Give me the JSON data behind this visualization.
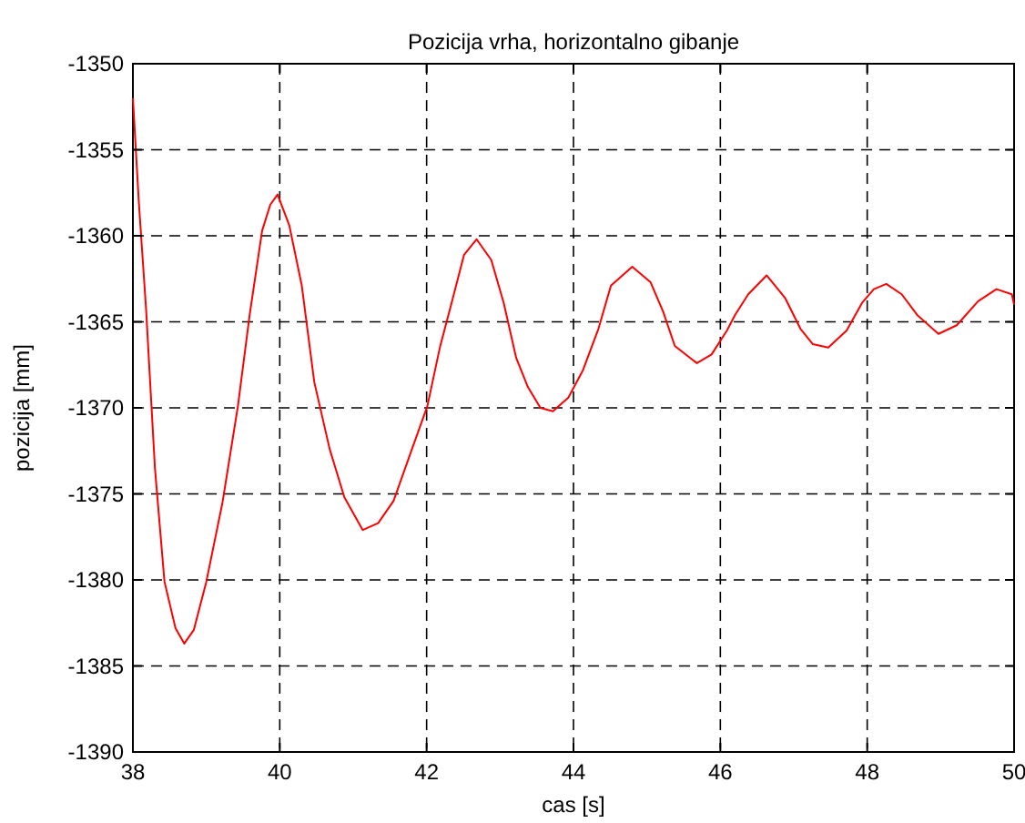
{
  "chart_data": {
    "type": "line",
    "title": "Pozicija vrha, horizontalno gibanje",
    "xlabel": "cas [s]",
    "ylabel": "pozicija [mm]",
    "xlim": [
      38,
      50
    ],
    "xticks": [
      38,
      40,
      42,
      44,
      46,
      48,
      50
    ],
    "ylim": [
      -1390,
      -1350
    ],
    "yticks": [
      -1390,
      -1385,
      -1380,
      -1375,
      -1370,
      -1365,
      -1360,
      -1355,
      -1350
    ],
    "grid": true,
    "line_style": "solid",
    "marker": "none",
    "series": [
      {
        "color": "#ff0000",
        "x": [
          38.0,
          38.08,
          38.18,
          38.3,
          38.43,
          38.58,
          38.7,
          38.83,
          39.0,
          39.22,
          39.43,
          39.59,
          39.76,
          39.87,
          39.97,
          40.13,
          40.3,
          40.47,
          40.68,
          40.88,
          41.13,
          41.34,
          41.55,
          41.8,
          42.01,
          42.18,
          42.34,
          42.51,
          42.68,
          42.88,
          43.05,
          43.22,
          43.38,
          43.55,
          43.72,
          43.93,
          44.13,
          44.34,
          44.51,
          44.8,
          45.05,
          45.22,
          45.38,
          45.68,
          45.88,
          46.09,
          46.2,
          46.38,
          46.63,
          46.88,
          47.09,
          47.26,
          47.47,
          47.72,
          47.93,
          48.09,
          48.26,
          48.47,
          48.68,
          48.97,
          49.22,
          49.51,
          49.76,
          49.97,
          50.0
        ],
        "values": [
          -1352,
          -1358,
          -1364.3,
          -1373.5,
          -1380.1,
          -1382.8,
          -1383.7,
          -1382.9,
          -1380.1,
          -1375.5,
          -1369.9,
          -1364.6,
          -1359.7,
          -1358.2,
          -1357.6,
          -1359.4,
          -1362.9,
          -1368.5,
          -1372.4,
          -1375.2,
          -1377.1,
          -1376.7,
          -1375.4,
          -1372.4,
          -1369.9,
          -1366.5,
          -1363.9,
          -1361.1,
          -1360.2,
          -1361.4,
          -1363.9,
          -1367.1,
          -1368.8,
          -1370.0,
          -1370.2,
          -1369.4,
          -1367.8,
          -1365.4,
          -1362.9,
          -1361.8,
          -1362.7,
          -1364.4,
          -1366.4,
          -1367.4,
          -1366.9,
          -1365.5,
          -1364.6,
          -1363.4,
          -1362.3,
          -1363.6,
          -1365.4,
          -1366.3,
          -1366.5,
          -1365.5,
          -1363.9,
          -1363.1,
          -1362.8,
          -1363.4,
          -1364.6,
          -1365.7,
          -1365.2,
          -1363.8,
          -1363.1,
          -1363.4,
          -1364
        ]
      }
    ]
  }
}
